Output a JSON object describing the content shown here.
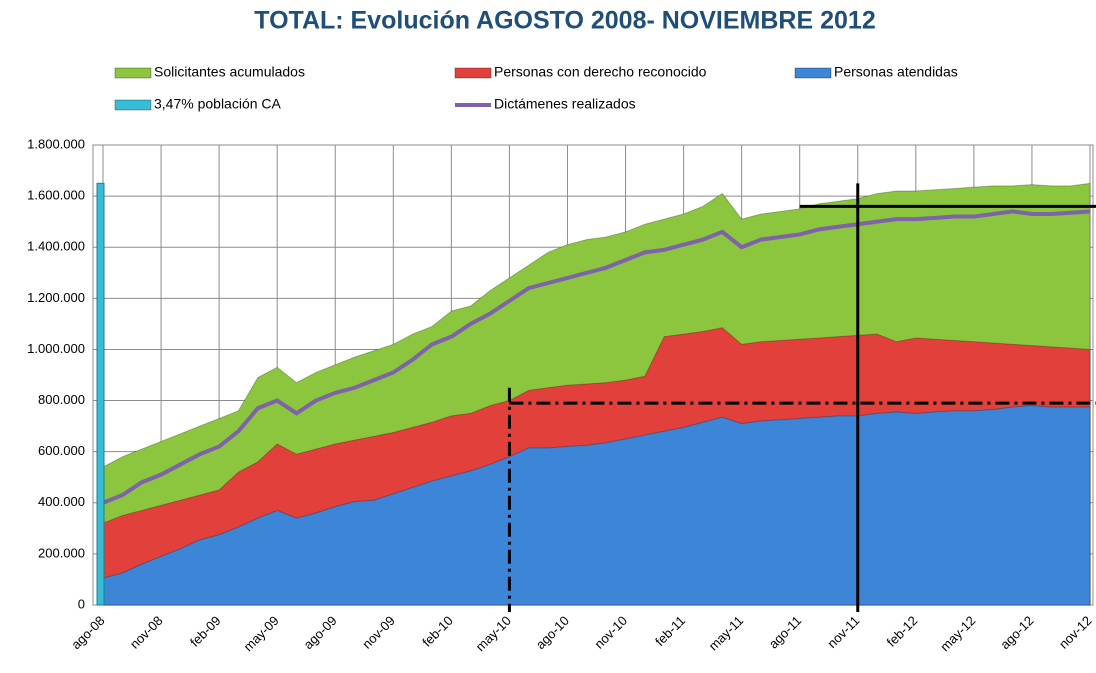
{
  "chart_data": {
    "type": "area",
    "title": "TOTAL: Evolución AGOSTO 2008- NOVIEMBRE 2012",
    "categories": [
      "ago-08",
      null,
      null,
      "nov-08",
      null,
      null,
      "feb-09",
      null,
      null,
      "may-09",
      null,
      null,
      "ago-09",
      null,
      null,
      "nov-09",
      null,
      null,
      "feb-10",
      null,
      null,
      "may-10",
      null,
      null,
      "ago-10",
      null,
      null,
      "nov-10",
      null,
      null,
      "feb-11",
      null,
      null,
      "may-11",
      null,
      null,
      "ago-11",
      null,
      null,
      "nov-11",
      null,
      null,
      "feb-12",
      null,
      null,
      "may-12",
      null,
      null,
      "ago-12",
      null,
      null,
      "nov-12"
    ],
    "series": [
      {
        "name": "Solicitantes acumulados",
        "color": "#8cc63f",
        "kind": "area",
        "values": [
          540000,
          580000,
          610000,
          640000,
          670000,
          700000,
          730000,
          760000,
          890000,
          930000,
          870000,
          910000,
          940000,
          970000,
          995000,
          1020000,
          1060000,
          1090000,
          1150000,
          1170000,
          1230000,
          1280000,
          1330000,
          1380000,
          1410000,
          1430000,
          1440000,
          1460000,
          1490000,
          1510000,
          1530000,
          1560000,
          1610000,
          1510000,
          1530000,
          1540000,
          1550000,
          1570000,
          1580000,
          1590000,
          1610000,
          1620000,
          1620000,
          1625000,
          1630000,
          1635000,
          1640000,
          1640000,
          1645000,
          1640000,
          1640000,
          1650000
        ]
      },
      {
        "name": "Personas con derecho reconocido",
        "color": "#e2403b",
        "kind": "area",
        "values": [
          320000,
          350000,
          370000,
          390000,
          410000,
          430000,
          450000,
          520000,
          560000,
          630000,
          590000,
          610000,
          630000,
          645000,
          660000,
          675000,
          695000,
          715000,
          740000,
          750000,
          780000,
          800000,
          840000,
          850000,
          860000,
          865000,
          870000,
          880000,
          895000,
          1050000,
          1060000,
          1070000,
          1085000,
          1020000,
          1030000,
          1035000,
          1040000,
          1045000,
          1050000,
          1055000,
          1060000,
          1030000,
          1045000,
          1040000,
          1035000,
          1030000,
          1025000,
          1020000,
          1015000,
          1010000,
          1005000,
          1000000
        ]
      },
      {
        "name": "Personas atendidas",
        "color": "#3d85d6",
        "kind": "area",
        "values": [
          105000,
          125000,
          160000,
          190000,
          220000,
          255000,
          275000,
          305000,
          340000,
          370000,
          340000,
          360000,
          385000,
          405000,
          410000,
          435000,
          460000,
          485000,
          505000,
          525000,
          550000,
          580000,
          615000,
          615000,
          620000,
          625000,
          635000,
          650000,
          665000,
          680000,
          695000,
          715000,
          735000,
          710000,
          720000,
          725000,
          730000,
          735000,
          740000,
          740000,
          750000,
          755000,
          750000,
          755000,
          760000,
          760000,
          765000,
          775000,
          780000,
          775000,
          775000,
          775000
        ]
      },
      {
        "name": "3,47% población CA",
        "color": "#36bcd4",
        "kind": "bar",
        "values": [
          1650000,
          null,
          null,
          null,
          null,
          null,
          null,
          null,
          null,
          null,
          null,
          null,
          null,
          null,
          null,
          null,
          null,
          null,
          null,
          null,
          null,
          null,
          null,
          null,
          null,
          null,
          null,
          null,
          null,
          null,
          null,
          null,
          null,
          null,
          null,
          null,
          null,
          null,
          null,
          null,
          null,
          null,
          null,
          null,
          null,
          null,
          null,
          null,
          null,
          null,
          null,
          null
        ]
      },
      {
        "name": "Dictámenes realizados",
        "color": "#7e62aa",
        "kind": "line",
        "values": [
          400000,
          430000,
          480000,
          510000,
          550000,
          590000,
          620000,
          680000,
          770000,
          800000,
          750000,
          800000,
          830000,
          850000,
          880000,
          910000,
          960000,
          1020000,
          1050000,
          1100000,
          1140000,
          1190000,
          1240000,
          1260000,
          1280000,
          1300000,
          1320000,
          1350000,
          1380000,
          1390000,
          1410000,
          1430000,
          1460000,
          1400000,
          1430000,
          1440000,
          1450000,
          1470000,
          1480000,
          1490000,
          1500000,
          1510000,
          1510000,
          1515000,
          1520000,
          1520000,
          1530000,
          1540000,
          1530000,
          1530000,
          1535000,
          1540000
        ]
      }
    ],
    "ylim": [
      0,
      1800000
    ],
    "yticks": [
      0,
      {
        "value": 200000,
        "label": "200.000"
      },
      {
        "value": 400000,
        "label": "400.000"
      },
      {
        "value": 600000,
        "label": "600.000"
      },
      {
        "value": 800000,
        "label": "800.000"
      },
      {
        "value": 1000000,
        "label": "1.000.000"
      },
      {
        "value": 1200000,
        "label": "1.200.000"
      },
      {
        "value": 1400000,
        "label": "1.400.000"
      },
      {
        "value": 1600000,
        "label": "1.600.000"
      },
      {
        "value": 1800000,
        "label": "1.800.000"
      }
    ],
    "grid": true,
    "reference_lines": [
      {
        "orientation": "horizontal",
        "value": 1560000,
        "from": "ago-11",
        "style": "solid"
      },
      {
        "orientation": "vertical",
        "at": "nov-11",
        "top": 1650000,
        "style": "solid"
      },
      {
        "orientation": "horizontal",
        "value": 790000,
        "from": "may-10",
        "style": "dashdot"
      },
      {
        "orientation": "vertical",
        "at": "may-10",
        "top": 850000,
        "style": "dashdot"
      }
    ]
  }
}
